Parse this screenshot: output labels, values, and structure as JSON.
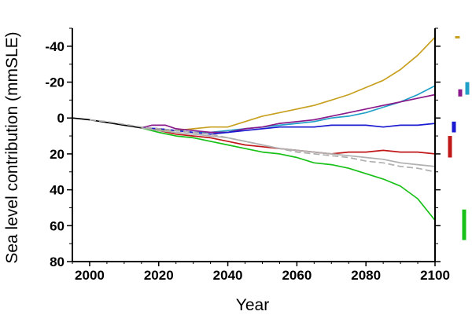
{
  "chart_data": {
    "type": "line",
    "title": "",
    "xlabel": "Year",
    "ylabel": "Sea level contribution (mmSLE)",
    "xlim": [
      1995,
      2100
    ],
    "ylim": [
      80,
      -50
    ],
    "y_inverted": true,
    "grid": false,
    "x_ticks": [
      2000,
      2020,
      2040,
      2060,
      2080,
      2100
    ],
    "y_ticks": [
      -40,
      -20,
      0,
      20,
      40,
      60,
      80
    ],
    "x_tick_labels": [
      "2000",
      "2020",
      "2040",
      "2060",
      "2080",
      "2100"
    ],
    "y_tick_labels": [
      "-40",
      "-20",
      "0",
      "20",
      "40",
      "60",
      "80"
    ],
    "series": [
      {
        "color": "#000000",
        "dashed": false,
        "points": [
          [
            1995,
            0
          ],
          [
            2000,
            1
          ],
          [
            2005,
            2.5
          ],
          [
            2010,
            4
          ],
          [
            2015,
            5.5
          ]
        ]
      },
      {
        "color": "#c8a020",
        "dashed": false,
        "points": [
          [
            2015,
            5.5
          ],
          [
            2020,
            6.5
          ],
          [
            2025,
            7
          ],
          [
            2030,
            6
          ],
          [
            2035,
            5
          ],
          [
            2040,
            5
          ],
          [
            2045,
            2
          ],
          [
            2050,
            -1
          ],
          [
            2055,
            -3
          ],
          [
            2060,
            -5
          ],
          [
            2065,
            -7
          ],
          [
            2070,
            -10
          ],
          [
            2075,
            -13
          ],
          [
            2080,
            -17
          ],
          [
            2085,
            -21
          ],
          [
            2090,
            -27
          ],
          [
            2095,
            -35
          ],
          [
            2100,
            -45
          ]
        ]
      },
      {
        "color": "#20a0c8",
        "dashed": false,
        "points": [
          [
            2015,
            5.5
          ],
          [
            2020,
            6
          ],
          [
            2025,
            7
          ],
          [
            2030,
            8
          ],
          [
            2035,
            8
          ],
          [
            2040,
            7
          ],
          [
            2045,
            6
          ],
          [
            2050,
            5
          ],
          [
            2055,
            4
          ],
          [
            2060,
            3
          ],
          [
            2065,
            2
          ],
          [
            2070,
            0
          ],
          [
            2075,
            -1
          ],
          [
            2080,
            -3
          ],
          [
            2085,
            -6
          ],
          [
            2090,
            -9
          ],
          [
            2095,
            -13
          ],
          [
            2100,
            -18
          ]
        ]
      },
      {
        "color": "#8b1a8b",
        "dashed": false,
        "points": [
          [
            2015,
            5.5
          ],
          [
            2018,
            4
          ],
          [
            2022,
            4
          ],
          [
            2025,
            6
          ],
          [
            2030,
            7
          ],
          [
            2035,
            8
          ],
          [
            2040,
            8
          ],
          [
            2045,
            6
          ],
          [
            2050,
            5
          ],
          [
            2055,
            3
          ],
          [
            2060,
            2
          ],
          [
            2065,
            1
          ],
          [
            2070,
            -1
          ],
          [
            2075,
            -3
          ],
          [
            2080,
            -5
          ],
          [
            2085,
            -7
          ],
          [
            2090,
            -9
          ],
          [
            2095,
            -11
          ],
          [
            2100,
            -13
          ]
        ]
      },
      {
        "color": "#1a1ad0",
        "dashed": false,
        "points": [
          [
            2015,
            5.5
          ],
          [
            2020,
            6
          ],
          [
            2025,
            7
          ],
          [
            2030,
            8
          ],
          [
            2035,
            9
          ],
          [
            2040,
            8
          ],
          [
            2045,
            7
          ],
          [
            2050,
            6
          ],
          [
            2055,
            5
          ],
          [
            2060,
            5
          ],
          [
            2065,
            5
          ],
          [
            2070,
            4
          ],
          [
            2075,
            4
          ],
          [
            2080,
            4
          ],
          [
            2085,
            5
          ],
          [
            2090,
            4
          ],
          [
            2095,
            4
          ],
          [
            2100,
            3
          ]
        ]
      },
      {
        "color": "#c01818",
        "dashed": false,
        "points": [
          [
            2015,
            5.5
          ],
          [
            2020,
            7
          ],
          [
            2025,
            9
          ],
          [
            2030,
            10
          ],
          [
            2035,
            11
          ],
          [
            2040,
            13
          ],
          [
            2045,
            15
          ],
          [
            2050,
            16
          ],
          [
            2055,
            17
          ],
          [
            2060,
            18
          ],
          [
            2065,
            19
          ],
          [
            2070,
            20
          ],
          [
            2075,
            19
          ],
          [
            2080,
            19
          ],
          [
            2085,
            18
          ],
          [
            2090,
            19
          ],
          [
            2095,
            19
          ],
          [
            2100,
            20
          ]
        ]
      },
      {
        "color": "#18c018",
        "dashed": false,
        "points": [
          [
            2015,
            5.5
          ],
          [
            2020,
            8
          ],
          [
            2025,
            10
          ],
          [
            2030,
            11
          ],
          [
            2035,
            13
          ],
          [
            2040,
            15
          ],
          [
            2045,
            17
          ],
          [
            2050,
            19
          ],
          [
            2055,
            20
          ],
          [
            2060,
            22
          ],
          [
            2065,
            25
          ],
          [
            2070,
            26
          ],
          [
            2075,
            28
          ],
          [
            2080,
            31
          ],
          [
            2085,
            34
          ],
          [
            2090,
            38
          ],
          [
            2095,
            45
          ],
          [
            2100,
            57
          ]
        ]
      },
      {
        "color": "#b0b0b0",
        "dashed": false,
        "points": [
          [
            2015,
            5.5
          ],
          [
            2020,
            7
          ],
          [
            2025,
            8
          ],
          [
            2030,
            9
          ],
          [
            2035,
            10
          ],
          [
            2040,
            11
          ],
          [
            2045,
            13
          ],
          [
            2050,
            15
          ],
          [
            2055,
            17
          ],
          [
            2060,
            18
          ],
          [
            2065,
            19
          ],
          [
            2070,
            20
          ],
          [
            2075,
            21
          ],
          [
            2080,
            22
          ],
          [
            2085,
            23
          ],
          [
            2090,
            25
          ],
          [
            2095,
            26
          ],
          [
            2100,
            27
          ]
        ]
      },
      {
        "color": "#b0b0b0",
        "dashed": true,
        "points": [
          [
            2000,
            1
          ],
          [
            2005,
            2
          ],
          [
            2010,
            3.5
          ],
          [
            2015,
            5
          ],
          [
            2020,
            6
          ],
          [
            2025,
            7
          ],
          [
            2030,
            8
          ],
          [
            2035,
            9
          ],
          [
            2040,
            11
          ],
          [
            2045,
            13
          ],
          [
            2050,
            15
          ],
          [
            2055,
            17
          ],
          [
            2060,
            19
          ],
          [
            2065,
            20
          ],
          [
            2070,
            21
          ],
          [
            2075,
            22
          ],
          [
            2080,
            24
          ],
          [
            2085,
            25
          ],
          [
            2090,
            27
          ],
          [
            2095,
            28
          ],
          [
            2100,
            30
          ]
        ]
      }
    ],
    "range_bars": [
      {
        "color": "#c8a020",
        "y": [
          -45,
          -45
        ]
      },
      {
        "color": "#20a0c8",
        "y": [
          -20,
          -13
        ]
      },
      {
        "color": "#8b1a8b",
        "y": [
          -16,
          -12
        ]
      },
      {
        "color": "#1a1ad0",
        "y": [
          2,
          8
        ]
      },
      {
        "color": "#c01818",
        "y": [
          10,
          22
        ]
      },
      {
        "color": "#18c018",
        "y": [
          51,
          68
        ]
      }
    ]
  }
}
